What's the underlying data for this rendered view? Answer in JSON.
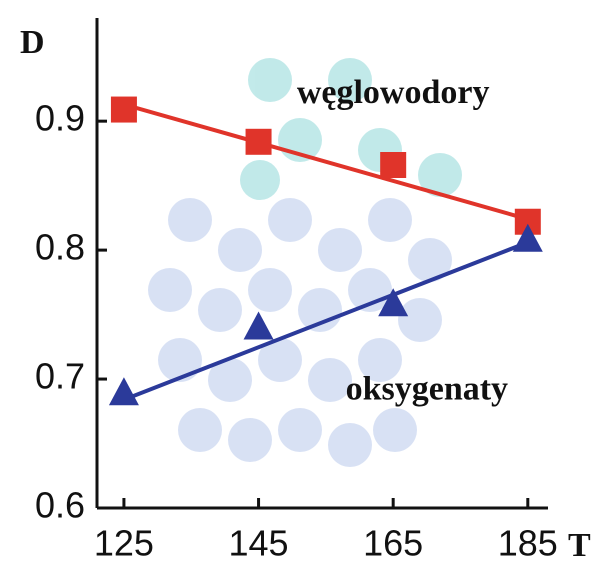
{
  "chart_data": {
    "type": "line",
    "y_label": "D",
    "x_label": "T",
    "x": [
      125,
      145,
      165,
      185
    ],
    "xlim": [
      121,
      188
    ],
    "xticks": [
      125,
      145,
      165,
      185
    ],
    "ylim": [
      0.6,
      0.98
    ],
    "yticks": [
      0.6,
      0.7,
      0.8,
      0.9
    ],
    "series": [
      {
        "color": "#e0342a",
        "marker": "square",
        "values": [
          0.909,
          0.884,
          0.866,
          0.822
        ],
        "trend": [
          0.913,
          0.824
        ]
      },
      {
        "color": "#2b3a9a",
        "marker": "triangle",
        "values": [
          0.689,
          0.74,
          0.758,
          0.808
        ],
        "trend": [
          0.684,
          0.806
        ]
      }
    ],
    "annotations": [
      {
        "text": "węglowodory",
        "x": 165,
        "y": 0.92
      },
      {
        "text": "oksygenaty",
        "x": 170,
        "y": 0.69
      }
    ]
  }
}
